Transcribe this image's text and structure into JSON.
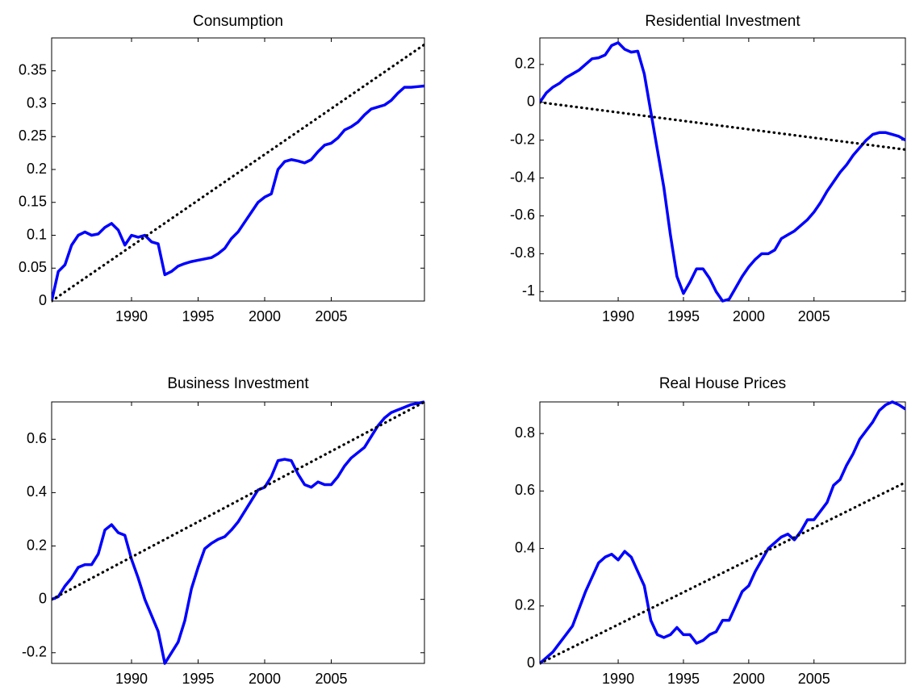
{
  "chart_data": [
    {
      "type": "line",
      "title": "Consumption",
      "x": [
        1984,
        1984.5,
        1985,
        1985.5,
        1986,
        1986.5,
        1987,
        1987.5,
        1988,
        1988.5,
        1989,
        1989.5,
        1990,
        1990.5,
        1991,
        1991.5,
        1992,
        1992.5,
        1993,
        1993.5,
        1994,
        1994.5,
        1995,
        1995.5,
        1996,
        1996.5,
        1997,
        1997.5,
        1998,
        1998.5,
        1999,
        1999.5,
        2000,
        2000.5,
        2001,
        2001.5,
        2002,
        2002.5,
        2003,
        2003.5,
        2004,
        2004.5,
        2005,
        2005.5,
        2006,
        2006.5,
        2007,
        2007.5,
        2008,
        2008.5,
        2009,
        2009.5,
        2010,
        2010.5,
        2011,
        2011.5,
        2012
      ],
      "series": [
        {
          "color": "#0000ff",
          "values": [
            0,
            0.045,
            0.055,
            0.085,
            0.1,
            0.105,
            0.1,
            0.102,
            0.112,
            0.118,
            0.108,
            0.085,
            0.1,
            0.097,
            0.1,
            0.09,
            0.087,
            0.04,
            0.045,
            0.053,
            0.057,
            0.06,
            0.062,
            0.064,
            0.066,
            0.072,
            0.08,
            0.095,
            0.105,
            0.12,
            0.135,
            0.15,
            0.158,
            0.163,
            0.2,
            0.212,
            0.215,
            0.213,
            0.21,
            0.215,
            0.227,
            0.237,
            0.24,
            0.248,
            0.26,
            0.265,
            0.272,
            0.283,
            0.292,
            0.295,
            0.298,
            0.305,
            0.316,
            0.325,
            0.325,
            0.326,
            0.327
          ]
        },
        {
          "color": "#000000",
          "style": "dotted",
          "x": [
            1984,
            2012
          ],
          "values": [
            0,
            0.39
          ]
        }
      ],
      "xlim": [
        1984,
        2012
      ],
      "xticks": [
        1990,
        1995,
        2000,
        2005
      ],
      "ylim": [
        0,
        0.4
      ],
      "yticks": [
        0,
        0.05,
        0.1,
        0.15,
        0.2,
        0.25,
        0.3,
        0.35
      ]
    },
    {
      "type": "line",
      "title": "Residential Investment",
      "x": [
        1984,
        1984.5,
        1985,
        1985.5,
        1986,
        1986.5,
        1987,
        1987.5,
        1988,
        1988.5,
        1989,
        1989.5,
        1990,
        1990.5,
        1991,
        1991.5,
        1992,
        1992.5,
        1993,
        1993.5,
        1994,
        1994.5,
        1995,
        1995.5,
        1996,
        1996.5,
        1997,
        1997.5,
        1998,
        1998.5,
        1999,
        1999.5,
        2000,
        2000.5,
        2001,
        2001.5,
        2002,
        2002.5,
        2003,
        2003.5,
        2004,
        2004.5,
        2005,
        2005.5,
        2006,
        2006.5,
        2007,
        2007.5,
        2008,
        2008.5,
        2009,
        2009.5,
        2010,
        2010.5,
        2011,
        2011.5,
        2012
      ],
      "series": [
        {
          "color": "#0000ff",
          "values": [
            0,
            0.05,
            0.08,
            0.1,
            0.13,
            0.15,
            0.17,
            0.2,
            0.23,
            0.235,
            0.25,
            0.3,
            0.315,
            0.28,
            0.265,
            0.27,
            0.15,
            -0.05,
            -0.25,
            -0.45,
            -0.7,
            -0.92,
            -1.01,
            -0.95,
            -0.88,
            -0.88,
            -0.93,
            -1,
            -1.05,
            -1.04,
            -0.98,
            -0.92,
            -0.87,
            -0.83,
            -0.8,
            -0.8,
            -0.78,
            -0.72,
            -0.7,
            -0.68,
            -0.65,
            -0.62,
            -0.58,
            -0.53,
            -0.47,
            -0.42,
            -0.37,
            -0.33,
            -0.28,
            -0.24,
            -0.2,
            -0.17,
            -0.16,
            -0.16,
            -0.17,
            -0.18,
            -0.2
          ]
        },
        {
          "color": "#000000",
          "style": "dotted",
          "x": [
            1984,
            2012
          ],
          "values": [
            0,
            -0.25
          ]
        }
      ],
      "xlim": [
        1984,
        2012
      ],
      "xticks": [
        1990,
        1995,
        2000,
        2005
      ],
      "ylim": [
        -1.05,
        0.34
      ],
      "yticks": [
        -1,
        -0.8,
        -0.6,
        -0.4,
        -0.2,
        0,
        0.2
      ]
    },
    {
      "type": "line",
      "title": "Business Investment",
      "x": [
        1984,
        1984.5,
        1985,
        1985.5,
        1986,
        1986.5,
        1987,
        1987.5,
        1988,
        1988.5,
        1989,
        1989.5,
        1990,
        1990.5,
        1991,
        1991.5,
        1992,
        1992.5,
        1993,
        1993.5,
        1994,
        1994.5,
        1995,
        1995.5,
        1996,
        1996.5,
        1997,
        1997.5,
        1998,
        1998.5,
        1999,
        1999.5,
        2000,
        2000.5,
        2001,
        2001.5,
        2002,
        2002.5,
        2003,
        2003.5,
        2004,
        2004.5,
        2005,
        2005.5,
        2006,
        2006.5,
        2007,
        2007.5,
        2008,
        2008.5,
        2009,
        2009.5,
        2010,
        2010.5,
        2011,
        2011.5,
        2012
      ],
      "series": [
        {
          "color": "#0000ff",
          "values": [
            0,
            0.01,
            0.05,
            0.08,
            0.12,
            0.13,
            0.13,
            0.17,
            0.26,
            0.28,
            0.25,
            0.24,
            0.15,
            0.08,
            0,
            -0.06,
            -0.12,
            -0.24,
            -0.2,
            -0.16,
            -0.08,
            0.04,
            0.12,
            0.19,
            0.21,
            0.225,
            0.235,
            0.26,
            0.29,
            0.33,
            0.37,
            0.41,
            0.42,
            0.46,
            0.52,
            0.525,
            0.52,
            0.47,
            0.43,
            0.42,
            0.44,
            0.43,
            0.43,
            0.46,
            0.5,
            0.53,
            0.55,
            0.57,
            0.61,
            0.65,
            0.68,
            0.7,
            0.71,
            0.72,
            0.73,
            0.735,
            0.74
          ]
        },
        {
          "color": "#000000",
          "style": "dotted",
          "x": [
            1984,
            2012
          ],
          "values": [
            0,
            0.74
          ]
        }
      ],
      "xlim": [
        1984,
        2012
      ],
      "xticks": [
        1990,
        1995,
        2000,
        2005
      ],
      "ylim": [
        -0.24,
        0.74
      ],
      "yticks": [
        -0.2,
        0,
        0.2,
        0.4,
        0.6
      ]
    },
    {
      "type": "line",
      "title": "Real House Prices",
      "x": [
        1984,
        1984.5,
        1985,
        1985.5,
        1986,
        1986.5,
        1987,
        1987.5,
        1988,
        1988.5,
        1989,
        1989.5,
        1990,
        1990.5,
        1991,
        1991.5,
        1992,
        1992.5,
        1993,
        1993.5,
        1994,
        1994.5,
        1995,
        1995.5,
        1996,
        1996.5,
        1997,
        1997.5,
        1998,
        1998.5,
        1999,
        1999.5,
        2000,
        2000.5,
        2001,
        2001.5,
        2002,
        2002.5,
        2003,
        2003.5,
        2004,
        2004.5,
        2005,
        2005.5,
        2006,
        2006.5,
        2007,
        2007.5,
        2008,
        2008.5,
        2009,
        2009.5,
        2010,
        2010.5,
        2011,
        2011.5,
        2012
      ],
      "series": [
        {
          "color": "#0000ff",
          "values": [
            0,
            0.02,
            0.04,
            0.07,
            0.1,
            0.13,
            0.19,
            0.25,
            0.3,
            0.35,
            0.37,
            0.38,
            0.36,
            0.39,
            0.37,
            0.32,
            0.27,
            0.15,
            0.1,
            0.09,
            0.1,
            0.125,
            0.1,
            0.1,
            0.07,
            0.08,
            0.1,
            0.11,
            0.15,
            0.15,
            0.2,
            0.25,
            0.27,
            0.32,
            0.36,
            0.4,
            0.42,
            0.44,
            0.45,
            0.43,
            0.46,
            0.5,
            0.5,
            0.53,
            0.56,
            0.62,
            0.64,
            0.69,
            0.73,
            0.78,
            0.81,
            0.84,
            0.88,
            0.9,
            0.91,
            0.9,
            0.885
          ]
        },
        {
          "color": "#000000",
          "style": "dotted",
          "x": [
            1984,
            2012
          ],
          "values": [
            0,
            0.63
          ]
        }
      ],
      "xlim": [
        1984,
        2012
      ],
      "xticks": [
        1990,
        1995,
        2000,
        2005
      ],
      "ylim": [
        0,
        0.91
      ],
      "yticks": [
        0,
        0.2,
        0.4,
        0.6,
        0.8
      ]
    }
  ]
}
